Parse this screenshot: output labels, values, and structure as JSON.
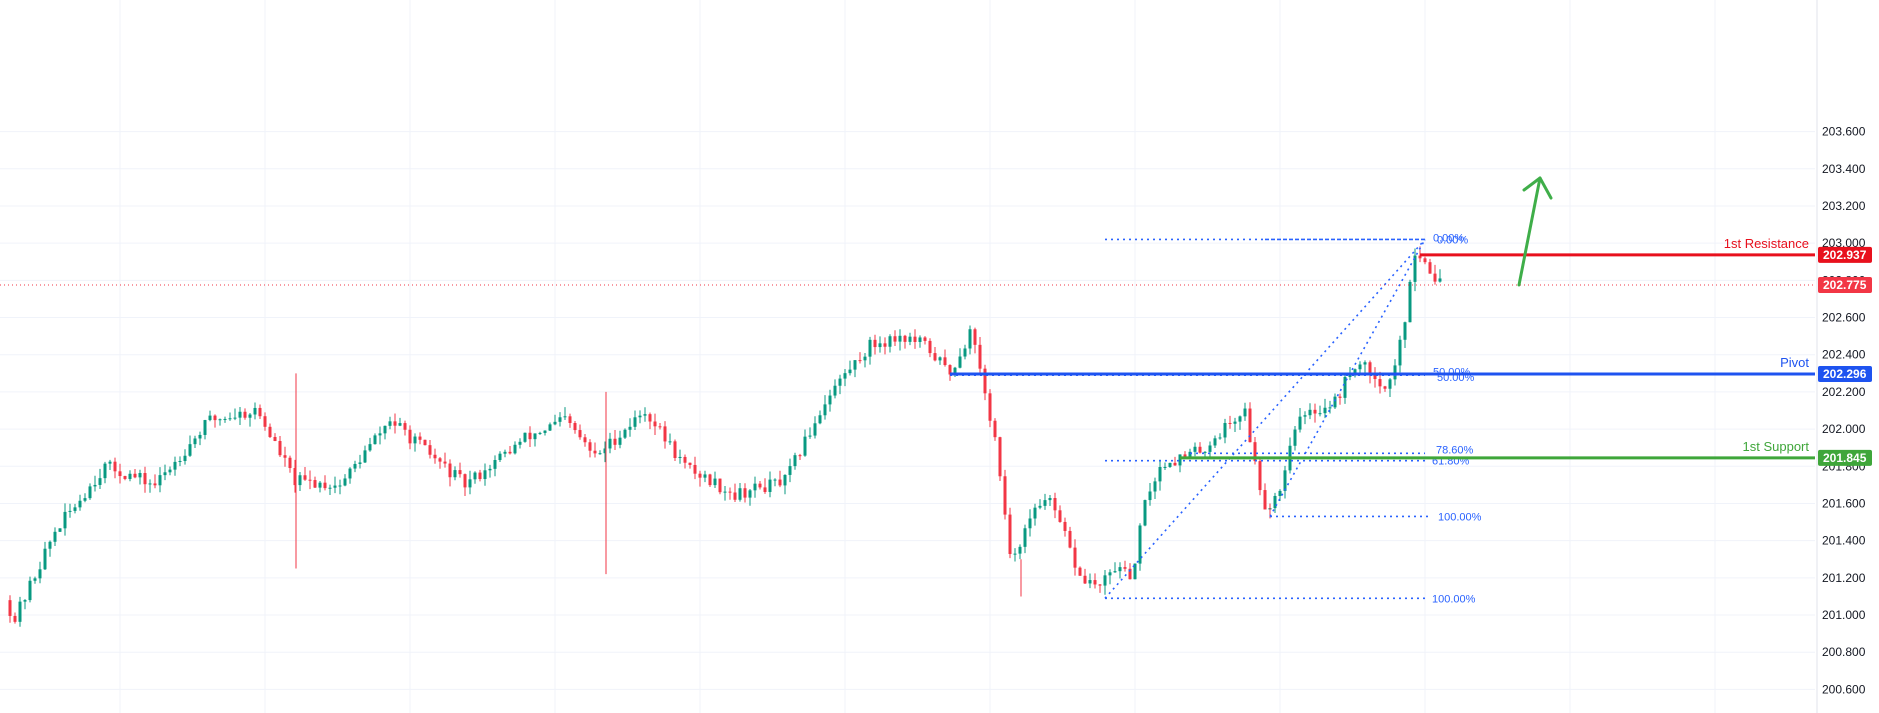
{
  "chart_data": {
    "type": "candlestick",
    "y_axis": {
      "position": "right",
      "range": [
        200.5,
        203.7
      ],
      "ticks": [
        200.6,
        200.8,
        201.0,
        201.2,
        201.4,
        201.6,
        201.8,
        202.0,
        202.2,
        202.4,
        202.6,
        202.8,
        203.0,
        203.2,
        203.4,
        203.6
      ],
      "tick_labels": [
        "200.600",
        "200.800",
        "201.000",
        "201.200",
        "201.400",
        "201.600",
        "201.800",
        "202.000",
        "202.200",
        "202.400",
        "202.600",
        "202.800",
        "203.000",
        "203.200",
        "203.400",
        "203.600"
      ]
    },
    "grid": true,
    "current_price": {
      "value": 202.775,
      "label": "202.775",
      "color": "#f23645"
    },
    "levels": [
      {
        "name": "1st Resistance",
        "value": 202.937,
        "label": "202.937",
        "color": "#e8101d"
      },
      {
        "name": "Pivot",
        "value": 202.296,
        "label": "202.296",
        "color": "#1e53f0"
      },
      {
        "name": "1st Support",
        "value": 201.845,
        "label": "201.845",
        "color": "#3fa63a"
      }
    ],
    "fibonacci_labels": [
      "0.00%",
      "50.00%",
      "61.80%",
      "78.60%",
      "100.00%",
      "0.00%",
      "50.00%",
      "61.80%",
      "78.60%",
      "100.00%"
    ],
    "colors": {
      "up": "#089981",
      "down": "#f23645",
      "fib": "#2962ff",
      "arrow": "#3fae49",
      "grid": "#f0f3fa",
      "axis_text": "#131722"
    },
    "arrow_direction": "up"
  }
}
